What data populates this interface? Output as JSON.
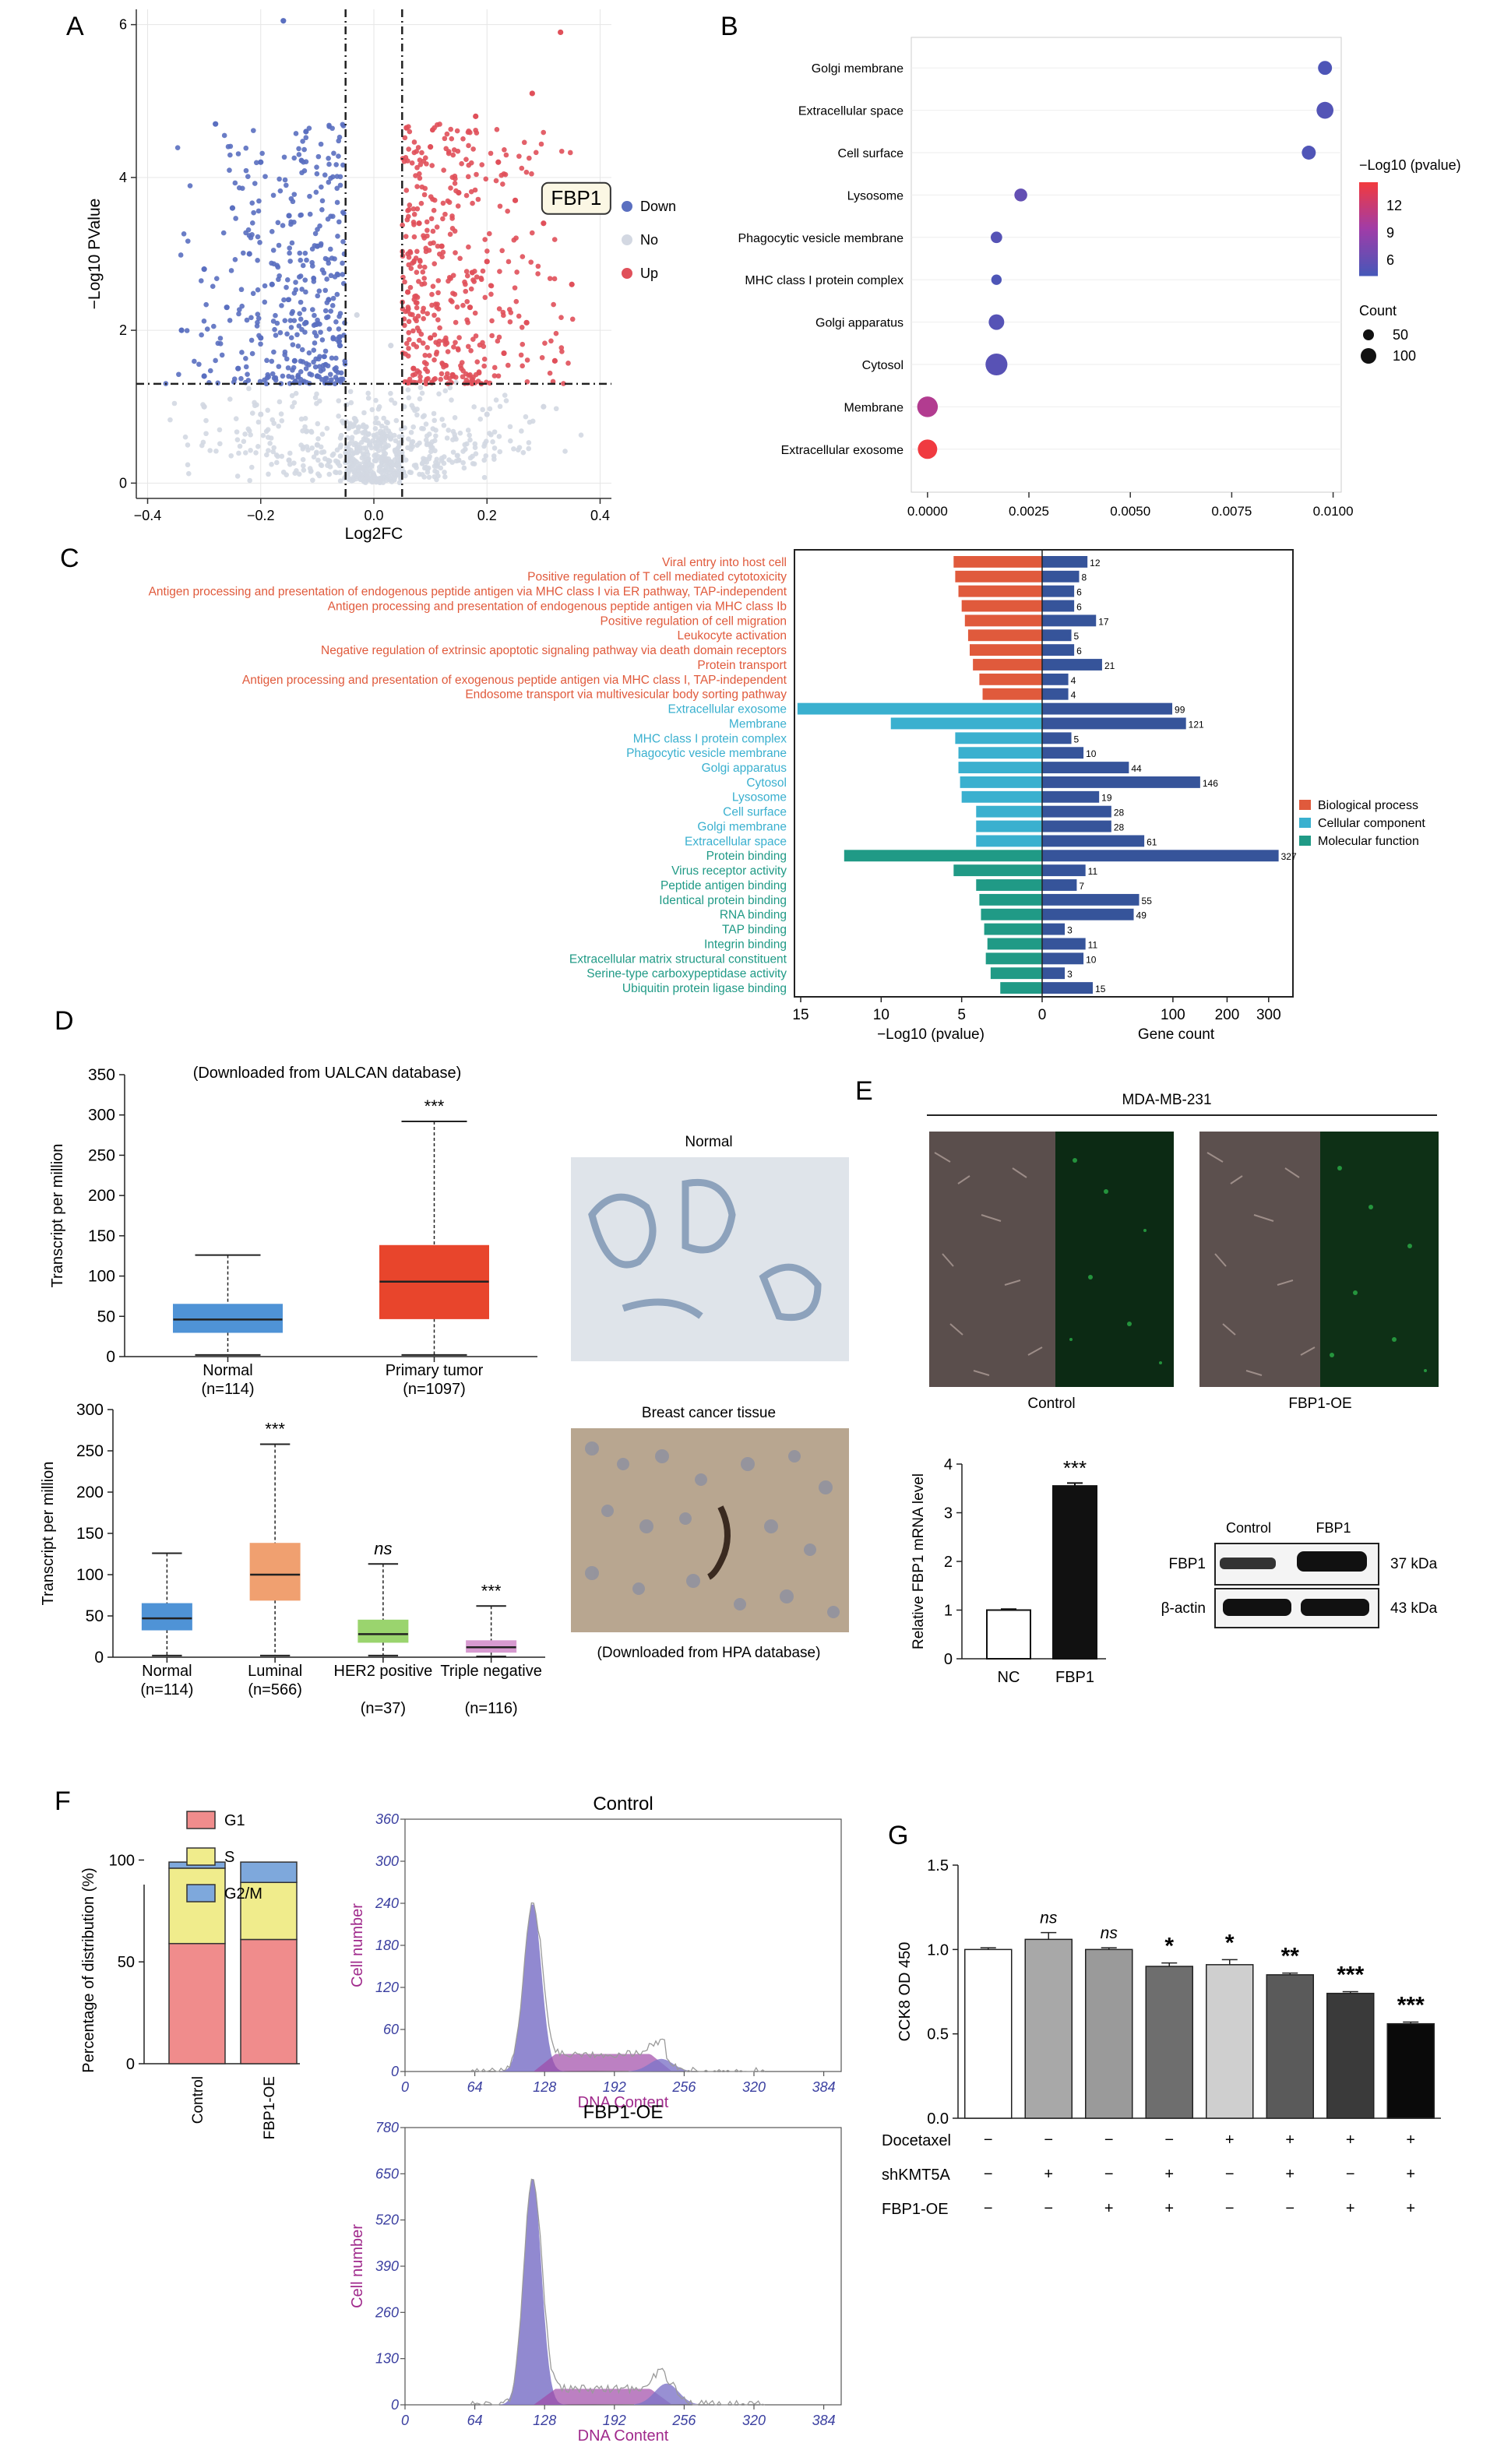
{
  "panel_labels": {
    "A": "A",
    "B": "B",
    "C": "C",
    "D": "D",
    "E": "E",
    "F": "F",
    "G": "G"
  },
  "colors": {
    "down": "#5a6fc0",
    "no": "#d3d8e2",
    "up": "#e0505a",
    "bp": "#e05a3c",
    "cc": "#3ab0cf",
    "mf": "#209a86",
    "gene": "#36549a",
    "normal_box": "#4f93d6",
    "tumor_box": "#e8452c",
    "luminal_box": "#f0a070",
    "her2_box": "#9ad46e",
    "tn_box": "#d79ad0",
    "g1": "#f08c8c",
    "s": "#f0ec8c",
    "g2m": "#7ea8dc",
    "flow_blue": "#7e74c8",
    "flow_purple": "#a04aa8"
  },
  "chart_data": [
    {
      "panel": "A",
      "type": "scatter",
      "xlabel": "Log2FC",
      "ylabel": "−Log10 PValue",
      "xlim": [
        -0.42,
        0.42
      ],
      "ylim": [
        -0.2,
        6.2
      ],
      "xticks": [
        "−0.4",
        "−0.2",
        "0.0",
        "0.2",
        "0.4"
      ],
      "yticks": [
        "0",
        "2",
        "4",
        "6"
      ],
      "thresholds": {
        "log2fc": [
          -0.05,
          0.05
        ],
        "neglog10p": 1.3
      },
      "legend": [
        "Down",
        "No",
        "Up"
      ],
      "annotation": "FBP1",
      "annotation_point": [
        0.3,
        3.4
      ],
      "series": [
        {
          "name": "Down",
          "points": [
            [
              -0.16,
              6.05
            ],
            [
              -0.28,
              4.7
            ],
            [
              -0.12,
              4.6
            ],
            [
              -0.2,
              4.2
            ],
            [
              -0.25,
              3.6
            ],
            [
              -0.15,
              3.5
            ],
            [
              -0.1,
              3.1
            ],
            [
              -0.22,
              3.0
            ],
            [
              -0.3,
              2.8
            ],
            [
              -0.18,
              2.6
            ],
            [
              -0.08,
              2.4
            ],
            [
              -0.26,
              2.3
            ],
            [
              -0.12,
              2.1
            ],
            [
              -0.34,
              2.0
            ],
            [
              -0.2,
              1.9
            ],
            [
              -0.06,
              1.8
            ],
            [
              -0.14,
              1.6
            ],
            [
              -0.24,
              1.5
            ],
            [
              -0.1,
              1.4
            ],
            [
              -0.3,
              1.4
            ]
          ]
        },
        {
          "name": "Up",
          "points": [
            [
              0.33,
              5.9
            ],
            [
              0.28,
              5.1
            ],
            [
              0.18,
              4.8
            ],
            [
              0.1,
              4.4
            ],
            [
              0.22,
              4.2
            ],
            [
              0.15,
              3.8
            ],
            [
              0.25,
              3.7
            ],
            [
              0.08,
              3.4
            ],
            [
              0.12,
              3.1
            ],
            [
              0.3,
              3.4
            ],
            [
              0.2,
              2.9
            ],
            [
              0.35,
              2.6
            ],
            [
              0.06,
              2.5
            ],
            [
              0.17,
              2.3
            ],
            [
              0.27,
              2.1
            ],
            [
              0.1,
              1.9
            ],
            [
              0.23,
              1.7
            ],
            [
              0.32,
              1.6
            ],
            [
              0.07,
              1.5
            ],
            [
              0.14,
              1.4
            ]
          ]
        },
        {
          "name": "No",
          "points": [
            [
              -0.02,
              0.2
            ],
            [
              0.02,
              0.3
            ],
            [
              -0.1,
              0.5
            ],
            [
              0.1,
              0.5
            ],
            [
              -0.2,
              0.9
            ],
            [
              0.2,
              0.9
            ],
            [
              0.0,
              0.1
            ],
            [
              -0.03,
              2.2
            ],
            [
              0.03,
              1.8
            ],
            [
              -0.3,
              1.0
            ],
            [
              0.3,
              1.0
            ],
            [
              -0.15,
              0.3
            ],
            [
              0.15,
              0.3
            ]
          ]
        }
      ]
    },
    {
      "panel": "B",
      "type": "scatter",
      "title": "",
      "categories": [
        "Golgi membrane",
        "Extracellular space",
        "Cell surface",
        "Lysosome",
        "Phagocytic vesicle membrane",
        "MHC class I protein complex",
        "Golgi apparatus",
        "Cytosol",
        "Membrane",
        "Extracellular exosome"
      ],
      "x": [
        0.0098,
        0.0098,
        0.0094,
        0.0023,
        0.0017,
        0.0017,
        0.0017,
        0.0017,
        0.0,
        0.0
      ],
      "count": [
        28,
        61,
        28,
        19,
        10,
        5,
        44,
        146,
        121,
        99
      ],
      "neglog10p": [
        6.2,
        6.4,
        6.3,
        7.0,
        6.5,
        6.2,
        6.5,
        6.6,
        10,
        12.5
      ],
      "xticks": [
        "0.0000",
        "0.0025",
        "0.0050",
        "0.0075",
        "0.0100"
      ],
      "xlim": [
        -0.0004,
        0.0102
      ],
      "colorbar_label": "−Log10 (pvalue)",
      "colorbar_ticks": [
        "12",
        "9",
        "6"
      ],
      "count_label": "Count",
      "count_ticks": [
        "50",
        "100"
      ]
    },
    {
      "panel": "C",
      "type": "bar",
      "left_axis_label": "−Log10 (pvalue)",
      "right_axis_label": "Gene count",
      "left_ticks": [
        "15",
        "10",
        "5",
        "0"
      ],
      "right_ticks": [
        "100",
        "200",
        "300"
      ],
      "legend": [
        "Biological process",
        "Cellular component",
        "Molecular function"
      ],
      "categories": [
        "Viral entry into host cell",
        "Positive regulation of T cell mediated cytotoxicity",
        "Antigen processing and presentation of endogenous peptide antigen via MHC class I via ER pathway, TAP-independent",
        "Antigen processing and presentation of endogenous peptide antigen via MHC class Ib",
        "Positive regulation of cell migration",
        "Leukocyte activation",
        "Negative regulation of extrinsic apoptotic signaling pathway via death domain receptors",
        "Protein transport",
        "Antigen processing and presentation of exogenous peptide antigen via MHC class I, TAP-independent",
        "Endosome transport via multivesicular body sorting pathway",
        "Extracellular exosome",
        "Membrane",
        "MHC class I protein complex",
        "Phagocytic vesicle membrane",
        "Golgi apparatus",
        "Cytosol",
        "Lysosome",
        "Cell surface",
        "Golgi membrane",
        "Extracellular space",
        "Protein binding",
        "Virus receptor activity",
        "Peptide antigen binding",
        "Identical protein binding",
        "RNA binding",
        "TAP binding",
        "Integrin binding",
        "Extracellular matrix structural constituent",
        "Serine-type carboxypeptidase activity",
        "Ubiquitin protein ligase binding"
      ],
      "group": [
        "bp",
        "bp",
        "bp",
        "bp",
        "bp",
        "bp",
        "bp",
        "bp",
        "bp",
        "bp",
        "cc",
        "cc",
        "cc",
        "cc",
        "cc",
        "cc",
        "cc",
        "cc",
        "cc",
        "cc",
        "mf",
        "mf",
        "mf",
        "mf",
        "mf",
        "mf",
        "mf",
        "mf",
        "mf",
        "mf"
      ],
      "neglog10p": [
        5.5,
        5.4,
        5.2,
        5.0,
        4.8,
        4.6,
        4.5,
        4.3,
        3.9,
        3.7,
        15.2,
        9.4,
        5.4,
        5.2,
        5.2,
        5.1,
        5.0,
        4.1,
        4.1,
        4.1,
        12.3,
        5.5,
        4.1,
        3.9,
        3.8,
        3.6,
        3.4,
        3.5,
        3.2,
        2.6
      ],
      "gene_count": [
        12,
        8,
        6,
        6,
        17,
        5,
        6,
        21,
        4,
        4,
        99,
        121,
        5,
        10,
        44,
        146,
        19,
        28,
        28,
        61,
        327,
        11,
        7,
        55,
        49,
        3,
        11,
        10,
        3,
        15
      ]
    },
    {
      "panel": "D-top",
      "type": "box",
      "title": "(Downloaded from UALCAN database)",
      "ylabel": "Transcript per million",
      "ylim": [
        0,
        350
      ],
      "yticks": [
        "0",
        "50",
        "100",
        "150",
        "200",
        "250",
        "300",
        "350"
      ],
      "categories": [
        "Normal",
        "Primary tumor"
      ],
      "n_labels": [
        "(n=114)",
        "(n=1097)"
      ],
      "boxes": [
        {
          "min": 2,
          "q1": 30,
          "median": 46,
          "q3": 65,
          "max": 126
        },
        {
          "min": 2,
          "q1": 47,
          "median": 93,
          "q3": 138,
          "max": 292
        }
      ],
      "significance": [
        "",
        "***"
      ]
    },
    {
      "panel": "D-bottom",
      "type": "box",
      "ylabel": "Transcript per million",
      "ylim": [
        0,
        300
      ],
      "yticks": [
        "0",
        "50",
        "100",
        "150",
        "200",
        "250",
        "300"
      ],
      "categories": [
        "Normal",
        "Luminal",
        "HER2 positive",
        "Triple negative"
      ],
      "n_labels": [
        "(n=114)",
        "(n=566)",
        "(n=37)",
        "(n=116)"
      ],
      "boxes": [
        {
          "min": 2,
          "q1": 33,
          "median": 47,
          "q3": 65,
          "max": 126
        },
        {
          "min": 2,
          "q1": 69,
          "median": 100,
          "q3": 138,
          "max": 258
        },
        {
          "min": 2,
          "q1": 18,
          "median": 28,
          "q3": 45,
          "max": 113
        },
        {
          "min": 1,
          "q1": 6,
          "median": 12,
          "q3": 20,
          "max": 62
        }
      ],
      "significance": [
        "",
        "***",
        "ns",
        "***"
      ]
    },
    {
      "panel": "E",
      "type": "bar",
      "ylabel": "Relative FBP1 mRNA level",
      "ylim": [
        0,
        4
      ],
      "yticks": [
        "0",
        "1",
        "2",
        "3",
        "4"
      ],
      "categories": [
        "NC",
        "FBP1"
      ],
      "values": [
        1.0,
        3.55
      ],
      "errors": [
        0.02,
        0.06
      ],
      "significance": [
        "",
        "***"
      ]
    },
    {
      "panel": "F",
      "type": "bar",
      "ylabel": "Percentage of distribution (%)",
      "ylim": [
        0,
        100
      ],
      "yticks": [
        "0",
        "50",
        "100"
      ],
      "categories": [
        "Control",
        "FBP1-OE"
      ],
      "series": [
        {
          "name": "G1",
          "values": [
            59,
            61
          ]
        },
        {
          "name": "S",
          "values": [
            37,
            28
          ]
        },
        {
          "name": "G2/M",
          "values": [
            3,
            10
          ]
        }
      ],
      "legend": [
        "G1",
        "S",
        "G2/M"
      ]
    },
    {
      "panel": "F-flow-control",
      "type": "area",
      "title": "Control",
      "xlabel": "DNA Content",
      "ylabel": "Cell number",
      "xticks": [
        "0",
        "64",
        "128",
        "192",
        "256",
        "320",
        "384"
      ],
      "yticks": [
        "0",
        "60",
        "120",
        "180",
        "240",
        "300",
        "360"
      ],
      "xlim": [
        0,
        400
      ],
      "ylim": [
        0,
        360
      ],
      "g1_peak": {
        "x": 117,
        "y": 240
      },
      "s_plateau": {
        "x_start": 128,
        "x_end": 235,
        "y": 25
      },
      "g2_peak": {
        "x": 235,
        "y": 18
      }
    },
    {
      "panel": "F-flow-fbp1",
      "type": "area",
      "title": "FBP1-OE",
      "xlabel": "DNA Content",
      "ylabel": "Cell number",
      "xticks": [
        "0",
        "64",
        "128",
        "192",
        "256",
        "320",
        "384"
      ],
      "yticks": [
        "0",
        "130",
        "260",
        "390",
        "520",
        "650",
        "780"
      ],
      "xlim": [
        0,
        400
      ],
      "ylim": [
        0,
        780
      ],
      "g1_peak": {
        "x": 117,
        "y": 640
      },
      "s_plateau": {
        "x_start": 128,
        "x_end": 235,
        "y": 45
      },
      "g2_peak": {
        "x": 240,
        "y": 60
      }
    },
    {
      "panel": "G",
      "type": "bar",
      "ylabel": "CCK8 OD 450",
      "ylim": [
        0,
        1.5
      ],
      "yticks": [
        "0.0",
        "0.5",
        "1.0",
        "1.5"
      ],
      "values": [
        1.0,
        1.06,
        1.0,
        0.9,
        0.91,
        0.85,
        0.74,
        0.56
      ],
      "errors": [
        0.01,
        0.04,
        0.01,
        0.02,
        0.03,
        0.01,
        0.01,
        0.01
      ],
      "significance": [
        "",
        "ns",
        "ns",
        "*",
        "*",
        "**",
        "***",
        "***"
      ],
      "conditions": [
        {
          "name": "Docetaxel",
          "signs": [
            "−",
            "−",
            "−",
            "−",
            "+",
            "+",
            "+",
            "+"
          ]
        },
        {
          "name": "shKMT5A",
          "signs": [
            "−",
            "+",
            "−",
            "+",
            "−",
            "+",
            "−",
            "+"
          ]
        },
        {
          "name": "FBP1-OE",
          "signs": [
            "−",
            "−",
            "+",
            "+",
            "−",
            "−",
            "+",
            "+"
          ]
        }
      ]
    }
  ],
  "panel_D_images": {
    "normal_title": "Normal",
    "tissue_title": "Breast cancer tissue",
    "source": "(Downloaded from HPA database)"
  },
  "panel_E": {
    "cell_line": "MDA-MB-231",
    "image_labels": [
      "Control",
      "FBP1-OE"
    ],
    "blot_columns": [
      "Control",
      "FBP1"
    ],
    "blot_rows": [
      "FBP1",
      "β-actin"
    ],
    "blot_sizes": [
      "37 kDa",
      "43 kDa"
    ]
  }
}
